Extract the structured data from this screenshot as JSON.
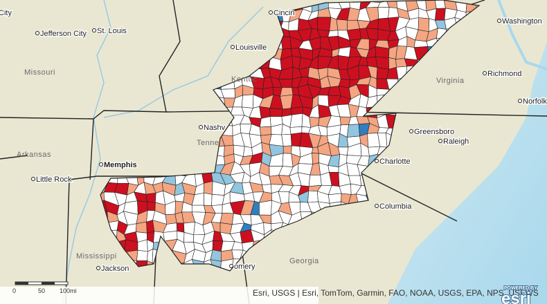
{
  "cities": [
    "City",
    "Jefferson City",
    "St. Louis",
    "Louisville",
    "Cincin",
    "Washington",
    "Richmond",
    "Norfolk",
    "Nashv",
    "Greensboro",
    "Raleigh",
    "Charlotte",
    "Memphis",
    "Little Rock",
    "Columbia",
    "Jackson",
    "omery"
  ],
  "states": [
    "Missouri",
    "Kentuc",
    "Virginia",
    "Tenne",
    "Arkansas",
    "Mississippi",
    "Georgia"
  ],
  "scale": [
    "0",
    "50",
    "100mi"
  ],
  "attribution": "Esri, USGS | Esri, TomTom, Garmin, FAO, NOAA, USGS, EPA, NPS, USFWS",
  "logo": {
    "top": "POWERED BY",
    "word": "esri"
  }
}
